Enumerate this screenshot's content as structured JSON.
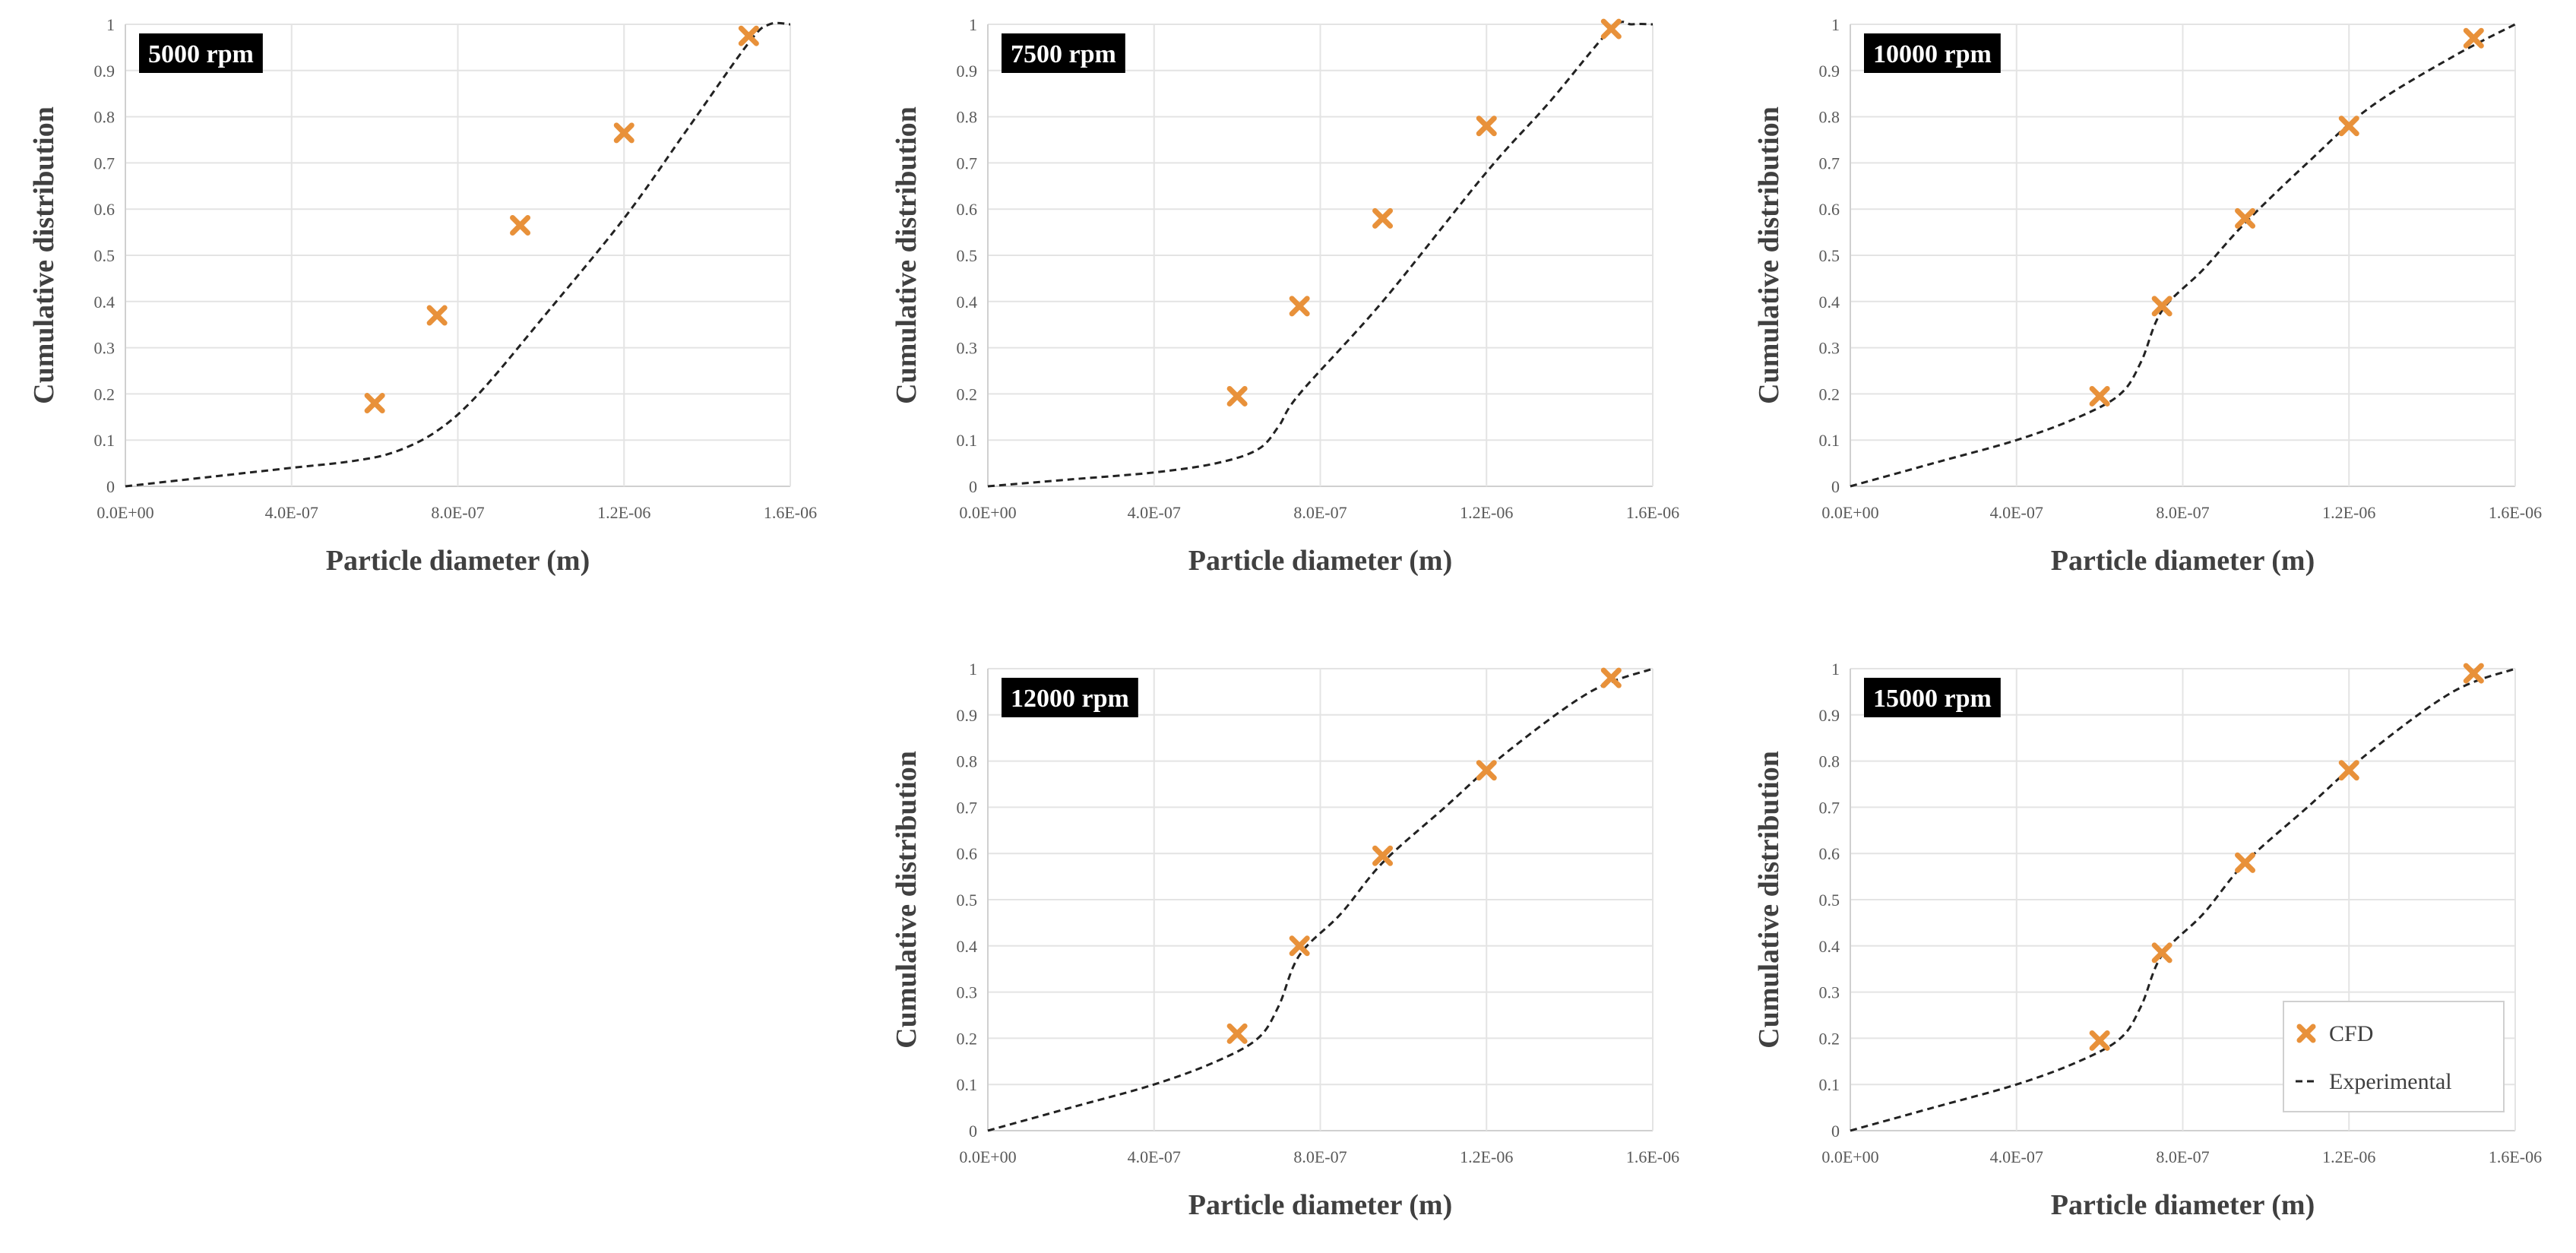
{
  "colors": {
    "cfd": "#E8913A",
    "experimental": "#222222"
  },
  "legend": {
    "cfd_label": "CFD",
    "experimental_label": "Experimental"
  },
  "chart_data": [
    {
      "type": "scatter",
      "title": "5000 rpm",
      "xlabel": "Particle diameter (m)",
      "ylabel": "Cumulative distribution",
      "xlim": [
        0,
        1.6e-06
      ],
      "ylim": [
        0,
        1
      ],
      "xticks": [
        0,
        4e-07,
        8e-07,
        1.2e-06,
        1.6e-06
      ],
      "xtick_labels": [
        "0.0E+00",
        "4.0E-07",
        "8.0E-07",
        "1.2E-06",
        "1.6E-06"
      ],
      "yticks": [
        0,
        0.1,
        0.2,
        0.3,
        0.4,
        0.5,
        0.6,
        0.7,
        0.8,
        0.9,
        1
      ],
      "ytick_labels": [
        "0",
        "0.1",
        "0.2",
        "0.3",
        "0.4",
        "0.5",
        "0.6",
        "0.7",
        "0.8",
        "0.9",
        "1"
      ],
      "series": [
        {
          "name": "CFD",
          "x": [
            6e-07,
            7.5e-07,
            9.5e-07,
            1.2e-06,
            1.5e-06
          ],
          "y": [
            0.18,
            0.37,
            0.565,
            0.765,
            0.975
          ]
        },
        {
          "name": "Experimental",
          "x": [
            0,
            2e-07,
            4e-07,
            5.5e-07,
            6.5e-07,
            7.5e-07,
            8.5e-07,
            1e-06,
            1.2e-06,
            1.35e-06,
            1.5e-06,
            1.55e-06,
            1.6e-06
          ],
          "y": [
            0,
            0.02,
            0.04,
            0.055,
            0.075,
            0.12,
            0.2,
            0.36,
            0.58,
            0.77,
            0.96,
            1.0,
            1.0
          ]
        }
      ]
    },
    {
      "type": "scatter",
      "title": "7500 rpm",
      "xlabel": "Particle diameter (m)",
      "ylabel": "Cumulative distribution",
      "xlim": [
        0,
        1.6e-06
      ],
      "ylim": [
        0,
        1
      ],
      "xticks": [
        0,
        4e-07,
        8e-07,
        1.2e-06,
        1.6e-06
      ],
      "xtick_labels": [
        "0.0E+00",
        "4.0E-07",
        "8.0E-07",
        "1.2E-06",
        "1.6E-06"
      ],
      "yticks": [
        0,
        0.1,
        0.2,
        0.3,
        0.4,
        0.5,
        0.6,
        0.7,
        0.8,
        0.9,
        1
      ],
      "ytick_labels": [
        "0",
        "0.1",
        "0.2",
        "0.3",
        "0.4",
        "0.5",
        "0.6",
        "0.7",
        "0.8",
        "0.9",
        "1"
      ],
      "series": [
        {
          "name": "CFD",
          "x": [
            6e-07,
            7.5e-07,
            9.5e-07,
            1.2e-06,
            1.5e-06
          ],
          "y": [
            0.195,
            0.39,
            0.58,
            0.78,
            0.99
          ]
        },
        {
          "name": "Experimental",
          "x": [
            0,
            2e-07,
            4e-07,
            5.5e-07,
            6.5e-07,
            7e-07,
            7.5e-07,
            9.5e-07,
            1.2e-06,
            1.35e-06,
            1.5e-06,
            1.55e-06,
            1.6e-06
          ],
          "y": [
            0,
            0.015,
            0.03,
            0.05,
            0.08,
            0.13,
            0.2,
            0.4,
            0.68,
            0.83,
            0.99,
            1.0,
            1.0
          ]
        }
      ]
    },
    {
      "type": "scatter",
      "title": "10000 rpm",
      "xlabel": "Particle diameter (m)",
      "ylabel": "Cumulative distribution",
      "xlim": [
        0,
        1.6e-06
      ],
      "ylim": [
        0,
        1
      ],
      "xticks": [
        0,
        4e-07,
        8e-07,
        1.2e-06,
        1.6e-06
      ],
      "xtick_labels": [
        "0.0E+00",
        "4.0E-07",
        "8.0E-07",
        "1.2E-06",
        "1.6E-06"
      ],
      "yticks": [
        0,
        0.1,
        0.2,
        0.3,
        0.4,
        0.5,
        0.6,
        0.7,
        0.8,
        0.9,
        1
      ],
      "ytick_labels": [
        "0",
        "0.1",
        "0.2",
        "0.3",
        "0.4",
        "0.5",
        "0.6",
        "0.7",
        "0.8",
        "0.9",
        "1"
      ],
      "series": [
        {
          "name": "CFD",
          "x": [
            6e-07,
            7.5e-07,
            9.5e-07,
            1.2e-06,
            1.5e-06
          ],
          "y": [
            0.195,
            0.39,
            0.58,
            0.78,
            0.97
          ]
        },
        {
          "name": "Experimental",
          "x": [
            0,
            2e-07,
            4e-07,
            5.5e-07,
            6.5e-07,
            7e-07,
            7.5e-07,
            8.5e-07,
            9.5e-07,
            1.1e-06,
            1.25e-06,
            1.45e-06,
            1.6e-06
          ],
          "y": [
            0,
            0.05,
            0.1,
            0.15,
            0.2,
            0.27,
            0.38,
            0.47,
            0.57,
            0.7,
            0.82,
            0.93,
            1.0
          ]
        }
      ]
    },
    {
      "type": "scatter",
      "title": "12000 rpm",
      "xlabel": "Particle diameter (m)",
      "ylabel": "Cumulative distribution",
      "xlim": [
        0,
        1.6e-06
      ],
      "ylim": [
        0,
        1
      ],
      "xticks": [
        0,
        4e-07,
        8e-07,
        1.2e-06,
        1.6e-06
      ],
      "xtick_labels": [
        "0.0E+00",
        "4.0E-07",
        "8.0E-07",
        "1.2E-06",
        "1.6E-06"
      ],
      "yticks": [
        0,
        0.1,
        0.2,
        0.3,
        0.4,
        0.5,
        0.6,
        0.7,
        0.8,
        0.9,
        1
      ],
      "ytick_labels": [
        "0",
        "0.1",
        "0.2",
        "0.3",
        "0.4",
        "0.5",
        "0.6",
        "0.7",
        "0.8",
        "0.9",
        "1"
      ],
      "series": [
        {
          "name": "CFD",
          "x": [
            6e-07,
            7.5e-07,
            9.5e-07,
            1.2e-06,
            1.5e-06
          ],
          "y": [
            0.21,
            0.4,
            0.595,
            0.78,
            0.98
          ]
        },
        {
          "name": "Experimental",
          "x": [
            0,
            2e-07,
            4e-07,
            5.5e-07,
            6.5e-07,
            7e-07,
            7.5e-07,
            8.5e-07,
            9.5e-07,
            1.1e-06,
            1.25e-06,
            1.45e-06,
            1.6e-06
          ],
          "y": [
            0,
            0.05,
            0.1,
            0.15,
            0.2,
            0.27,
            0.38,
            0.47,
            0.58,
            0.7,
            0.82,
            0.95,
            1.0
          ]
        }
      ]
    },
    {
      "type": "scatter",
      "title": "15000 rpm",
      "xlabel": "Particle diameter (m)",
      "ylabel": "Cumulative distribution",
      "xlim": [
        0,
        1.6e-06
      ],
      "ylim": [
        0,
        1
      ],
      "xticks": [
        0,
        4e-07,
        8e-07,
        1.2e-06,
        1.6e-06
      ],
      "xtick_labels": [
        "0.0E+00",
        "4.0E-07",
        "8.0E-07",
        "1.2E-06",
        "1.6E-06"
      ],
      "yticks": [
        0,
        0.1,
        0.2,
        0.3,
        0.4,
        0.5,
        0.6,
        0.7,
        0.8,
        0.9,
        1
      ],
      "ytick_labels": [
        "0",
        "0.1",
        "0.2",
        "0.3",
        "0.4",
        "0.5",
        "0.6",
        "0.7",
        "0.8",
        "0.9",
        "1"
      ],
      "legend_position": "bottom-right",
      "series": [
        {
          "name": "CFD",
          "x": [
            6e-07,
            7.5e-07,
            9.5e-07,
            1.2e-06,
            1.5e-06
          ],
          "y": [
            0.195,
            0.385,
            0.58,
            0.78,
            0.99
          ]
        },
        {
          "name": "Experimental",
          "x": [
            0,
            2e-07,
            4e-07,
            5.5e-07,
            6.5e-07,
            7e-07,
            7.5e-07,
            8.5e-07,
            9.5e-07,
            1.1e-06,
            1.25e-06,
            1.45e-06,
            1.6e-06
          ],
          "y": [
            0,
            0.05,
            0.1,
            0.15,
            0.2,
            0.27,
            0.38,
            0.47,
            0.58,
            0.7,
            0.82,
            0.95,
            1.0
          ]
        }
      ]
    }
  ]
}
